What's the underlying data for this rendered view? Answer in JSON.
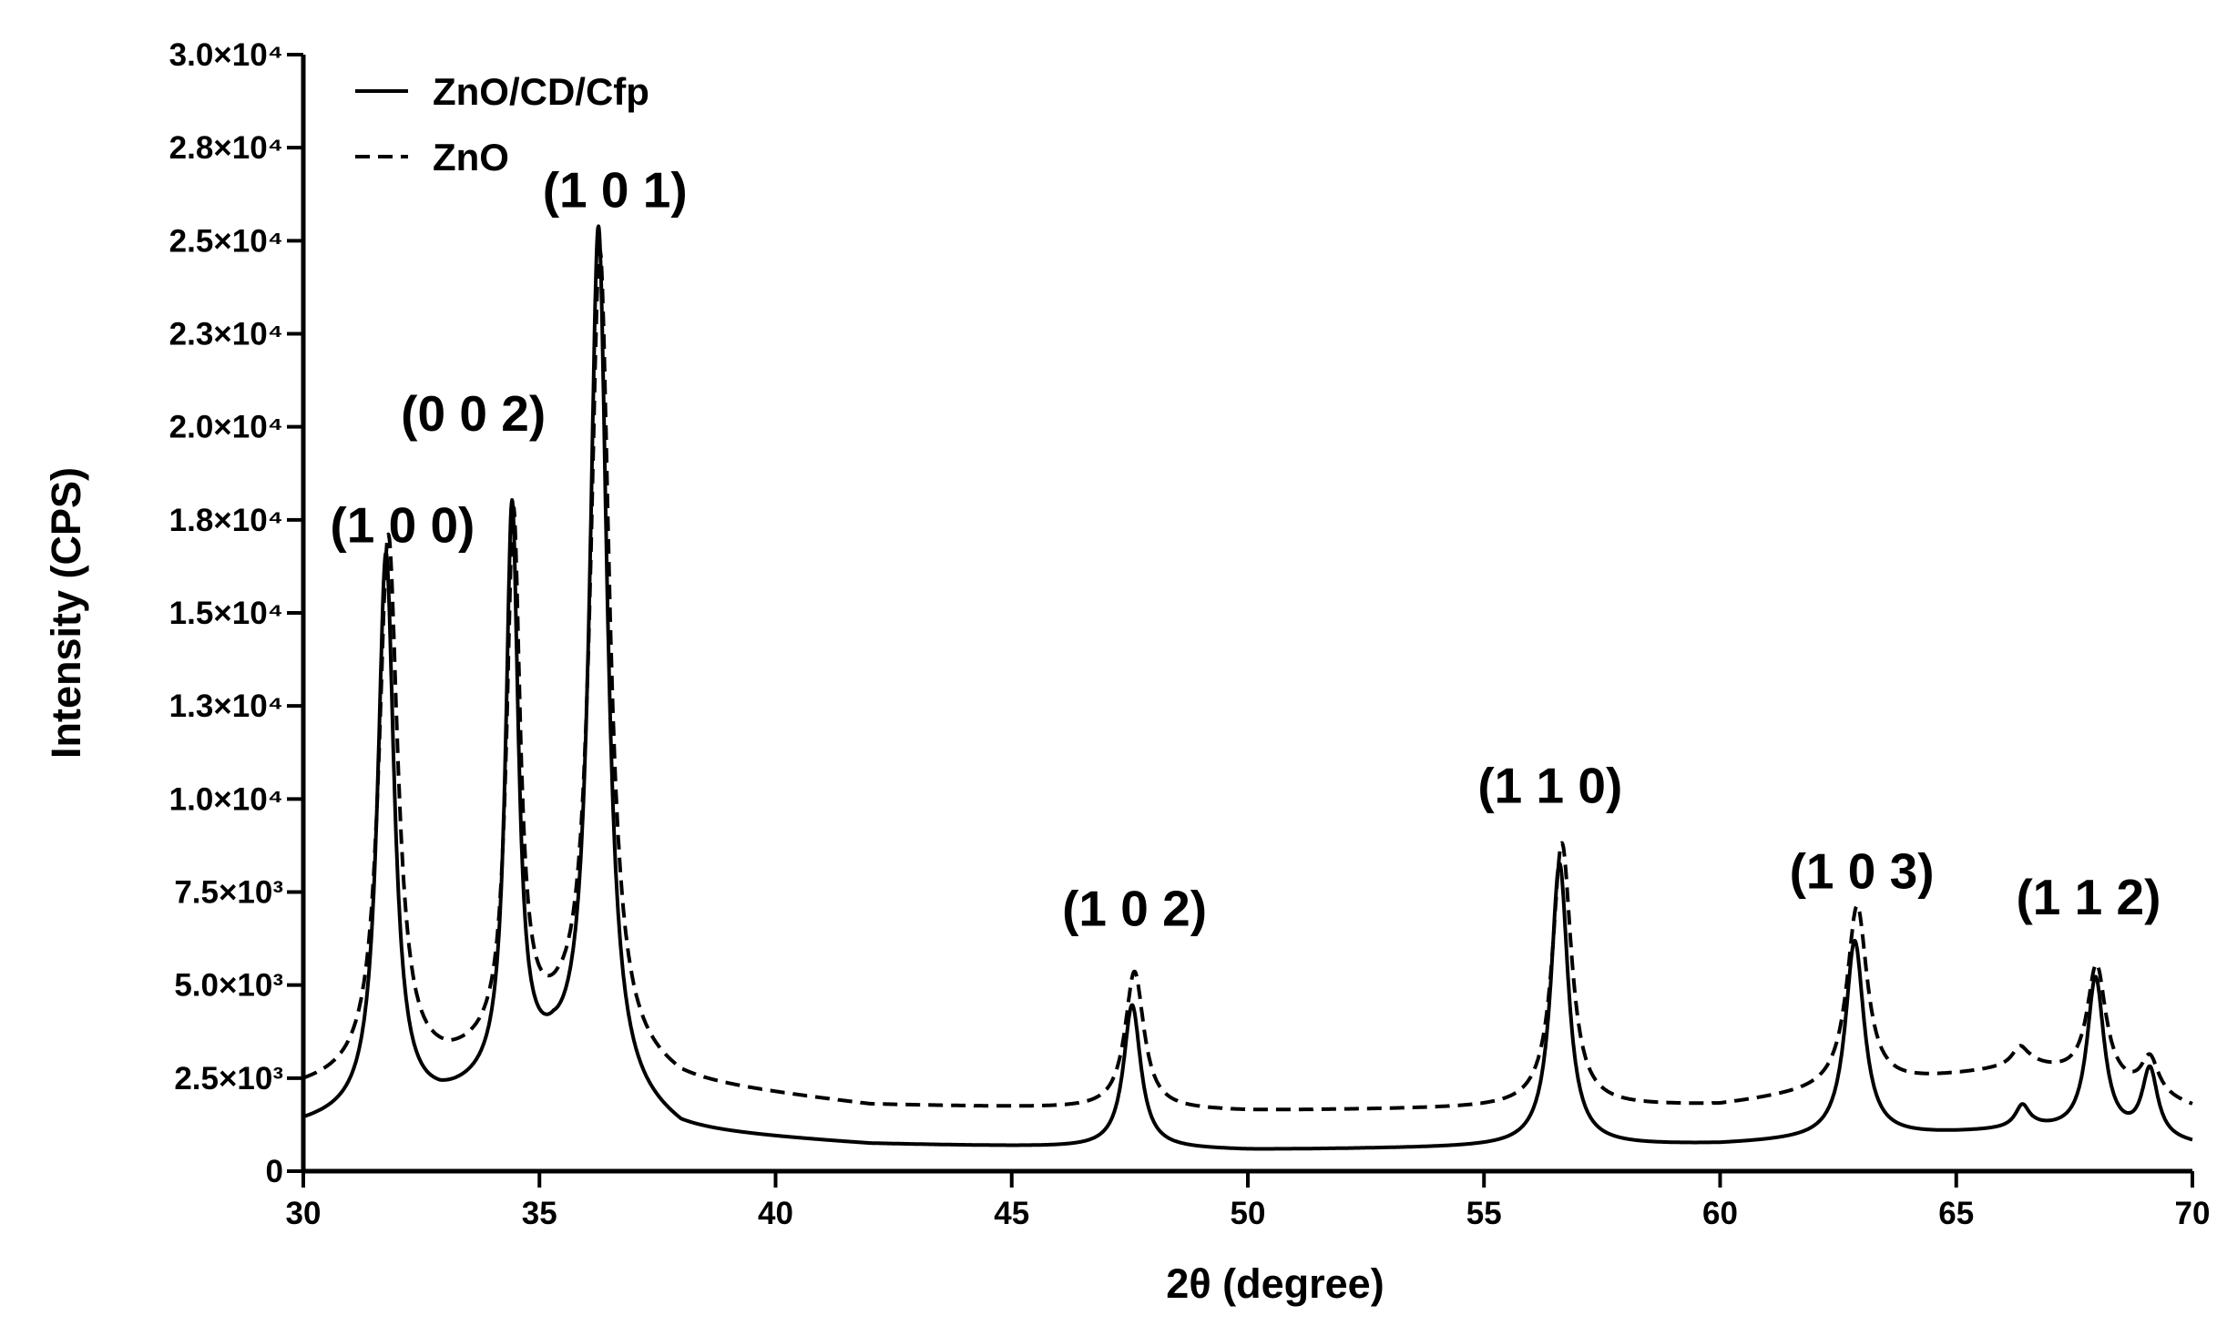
{
  "chart_data": {
    "type": "line",
    "title": "",
    "xlabel": "2θ  (degree)",
    "ylabel": "Intensity (CPS)",
    "xlim": [
      30,
      70
    ],
    "ylim": [
      0,
      30000
    ],
    "x_ticks": [
      30,
      35,
      40,
      45,
      50,
      55,
      60,
      65,
      70
    ],
    "x_tick_labels": [
      "30",
      "35",
      "40",
      "45",
      "50",
      "55",
      "60",
      "65",
      "70"
    ],
    "y_ticks": [
      0,
      2500,
      5000,
      7500,
      10000,
      12500,
      15000,
      17500,
      20000,
      22500,
      25000,
      27500,
      30000
    ],
    "y_tick_labels": [
      "0",
      "2.5×10³",
      "5.0×10³",
      "7.5×10³",
      "1.0×10⁴",
      "1.3×10⁴",
      "1.5×10⁴",
      "1.8×10⁴",
      "2.0×10⁴",
      "2.3×10⁴",
      "2.5×10⁴",
      "2.8×10⁴",
      "3.0×10⁴"
    ],
    "legend_position": "top-left",
    "grid": false,
    "series": [
      {
        "name": "ZnO/CD/Cfp",
        "style": "solid",
        "color": "#000000",
        "baseline": [
          [
            30,
            1200
          ],
          [
            32.9,
            1700
          ],
          [
            34.9,
            2500
          ],
          [
            35.3,
            2600
          ],
          [
            38,
            1000
          ],
          [
            42,
            700
          ],
          [
            50,
            550
          ],
          [
            60,
            700
          ],
          [
            66.7,
            1100
          ],
          [
            70,
            700
          ]
        ],
        "peaks": [
          {
            "x": 31.75,
            "height": 15000,
            "width": 0.21
          },
          {
            "x": 34.42,
            "height": 15300,
            "width": 0.16
          },
          {
            "x": 36.25,
            "height": 23200,
            "width": 0.22
          },
          {
            "x": 47.55,
            "height": 3850,
            "width": 0.22
          },
          {
            "x": 56.6,
            "height": 7600,
            "width": 0.22
          },
          {
            "x": 62.85,
            "height": 5300,
            "width": 0.24
          },
          {
            "x": 66.4,
            "height": 600,
            "width": 0.18
          },
          {
            "x": 67.95,
            "height": 4200,
            "width": 0.22
          },
          {
            "x": 69.1,
            "height": 1850,
            "width": 0.2
          }
        ]
      },
      {
        "name": "ZnO",
        "style": "dashed",
        "color": "#000000",
        "baseline": [
          [
            30,
            2200
          ],
          [
            33.1,
            2700
          ],
          [
            34.9,
            3450
          ],
          [
            35.4,
            3500
          ],
          [
            38,
            2300
          ],
          [
            42,
            1750
          ],
          [
            50,
            1600
          ],
          [
            60,
            1750
          ],
          [
            66.6,
            2800
          ],
          [
            70,
            1700
          ]
        ],
        "peaks": [
          {
            "x": 31.8,
            "height": 14500,
            "width": 0.24
          },
          {
            "x": 34.45,
            "height": 14100,
            "width": 0.17
          },
          {
            "x": 36.28,
            "height": 21500,
            "width": 0.24
          },
          {
            "x": 47.6,
            "height": 3700,
            "width": 0.24
          },
          {
            "x": 56.65,
            "height": 7100,
            "width": 0.24
          },
          {
            "x": 62.9,
            "height": 4900,
            "width": 0.26
          },
          {
            "x": 66.35,
            "height": 500,
            "width": 0.2
          },
          {
            "x": 67.97,
            "height": 3150,
            "width": 0.24
          },
          {
            "x": 69.1,
            "height": 1000,
            "width": 0.22
          }
        ]
      }
    ],
    "annotations": [
      {
        "text": "(1 0 0)",
        "x": 32.1,
        "y": 16900
      },
      {
        "text": "(0 0 2)",
        "x": 33.6,
        "y": 19900
      },
      {
        "text": "(1 0 1)",
        "x": 36.6,
        "y": 25900
      },
      {
        "text": "(1 0 2)",
        "x": 47.6,
        "y": 6600
      },
      {
        "text": "(1 1 0)",
        "x": 56.4,
        "y": 9900
      },
      {
        "text": "(1 0 3)",
        "x": 63.0,
        "y": 7600
      },
      {
        "text": "(1 1 2)",
        "x": 67.8,
        "y": 6900
      }
    ]
  }
}
